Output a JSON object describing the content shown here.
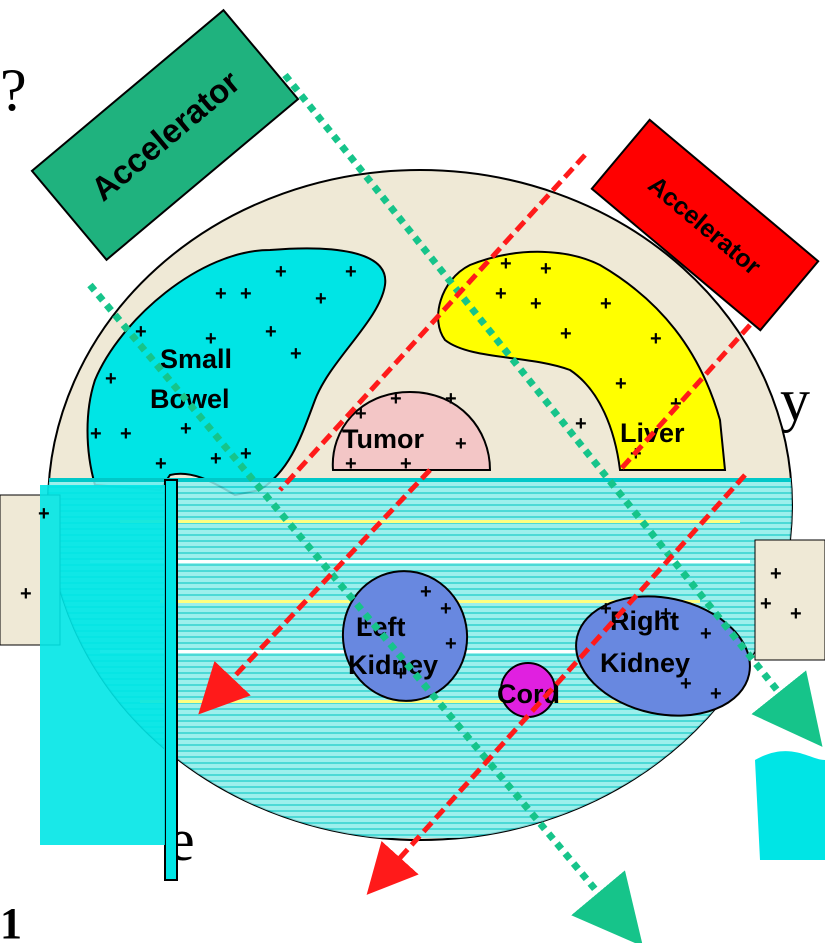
{
  "colors": {
    "body": "#efe9d6",
    "small_bowel": "#00e5e5",
    "liver": "#ffff00",
    "tumor": "#f3c6c6",
    "kidney": "#6888e0",
    "cord": "#e020e0",
    "accelerator_left": "#1fb27e",
    "accelerator_right": "#ff0000",
    "beam_green": "#16c48a",
    "beam_red": "#ff1a1a"
  },
  "accelerators": [
    {
      "label": "Accelerator",
      "color": "green"
    },
    {
      "label": "Accelerator",
      "color": "red"
    }
  ],
  "organs": {
    "small_bowel": [
      "Small",
      "Bowel"
    ],
    "tumor": "Tumor",
    "liver": "Liver",
    "left_kidney": [
      "Left",
      "Kidney"
    ],
    "right_kidney": [
      "Right",
      "Kidney"
    ],
    "cord": "Cord"
  },
  "background_fragments": [
    "?",
    "y",
    "e",
    "1"
  ]
}
